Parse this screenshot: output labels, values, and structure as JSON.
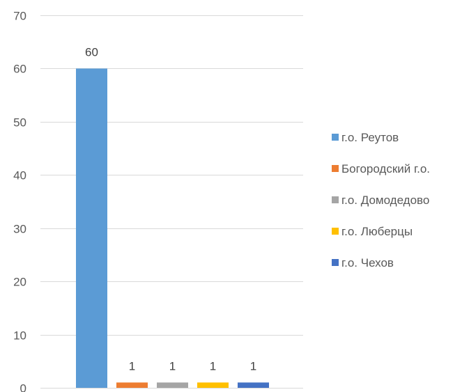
{
  "chart_data": {
    "type": "bar",
    "title": "",
    "xlabel": "",
    "ylabel": "",
    "ylim": [
      0,
      70
    ],
    "yticks": [
      0,
      10,
      20,
      30,
      40,
      50,
      60,
      70
    ],
    "grid": true,
    "legend_position": "right",
    "show_data_labels": true,
    "series": [
      {
        "name": "г.о. Реутов",
        "value": 60,
        "label": "60",
        "color": "#5B9BD5"
      },
      {
        "name": "Богородский г.о.",
        "value": 1,
        "label": "1",
        "color": "#ED7D31"
      },
      {
        "name": "г.о. Домодедово",
        "value": 1,
        "label": "1",
        "color": "#A5A5A5"
      },
      {
        "name": "г.о. Люберцы",
        "value": 1,
        "label": "1",
        "color": "#FFC000"
      },
      {
        "name": "г.о. Чехов",
        "value": 1,
        "label": "1",
        "color": "#4472C4"
      }
    ]
  }
}
